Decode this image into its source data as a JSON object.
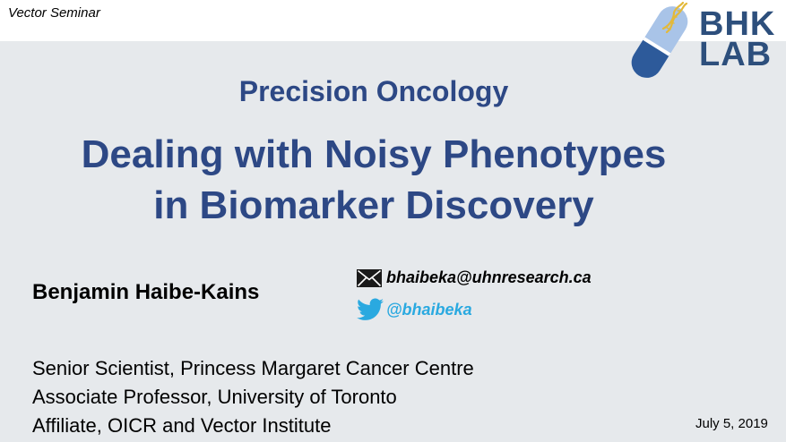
{
  "header": {
    "seminar": "Vector Seminar",
    "logo": {
      "line1": "BHK",
      "line2": "LAB",
      "icon": "capsule-dna-logo-icon",
      "color": "#2d4f7c"
    }
  },
  "slide": {
    "subtitle": "Precision Oncology",
    "title_line1": "Dealing with Noisy Phenotypes",
    "title_line2": "in Biomarker Discovery",
    "author": "Benjamin Haibe-Kains",
    "email": "bhaibeka@uhnresearch.ca",
    "twitter": "@bhaibeka",
    "affiliations": [
      "Senior Scientist, Princess Margaret Cancer Centre",
      "Associate Professor, University of Toronto",
      "Affiliate, OICR and Vector Institute"
    ],
    "date": "July 5, 2019"
  },
  "colors": {
    "background": "#e6e9ec",
    "title": "#2d4885",
    "twitter": "#2aa9e0"
  }
}
